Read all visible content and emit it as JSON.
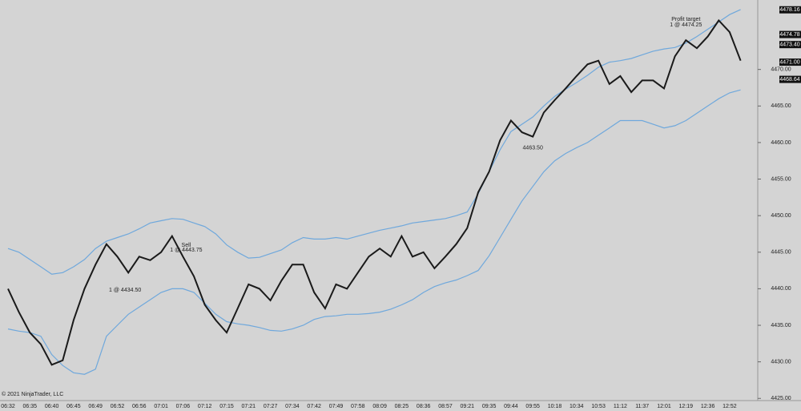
{
  "chart_data": {
    "type": "line",
    "copyright": "© 2021 NinjaTrader, LLC",
    "categories": [
      "06:32",
      null,
      "06:35",
      null,
      "06:40",
      null,
      "06:45",
      null,
      "06:49",
      null,
      "06:52",
      null,
      "06:56",
      null,
      "07:01",
      null,
      "07:06",
      null,
      "07:12",
      null,
      "07:15",
      null,
      "07:21",
      null,
      "07:27",
      null,
      "07:34",
      null,
      "07:42",
      null,
      "07:49",
      null,
      "07:58",
      null,
      "08:09",
      null,
      "08:25",
      null,
      "08:36",
      null,
      "08:57",
      null,
      "09:21",
      null,
      "09:35",
      null,
      "09:44",
      null,
      "09:55",
      null,
      "10:18",
      null,
      "10:34",
      null,
      "10:53",
      null,
      "11:12",
      null,
      "11:37",
      null,
      "12:01",
      null,
      "12:19",
      null,
      "12:36",
      null,
      "12:52",
      null
    ],
    "series": [
      {
        "color": "#6fa8dc",
        "values": [
          4445.5,
          4445,
          4444,
          4443,
          4442,
          4442.2,
          4443,
          4444,
          4445.5,
          4446.5,
          4447,
          4447.5,
          4448.2,
          4449,
          4449.3,
          4449.6,
          4449.5,
          4449,
          4448.5,
          4447.5,
          4446,
          4445,
          4444.2,
          4444.3,
          4444.8,
          4445.3,
          4446.3,
          4447,
          4446.8,
          4446.8,
          4447,
          4446.8,
          4447.2,
          4447.6,
          4448,
          4448.3,
          4448.6,
          4449,
          4449.2,
          4449.4,
          4449.6,
          4450,
          4450.5,
          4453,
          4456,
          4459,
          4461.5,
          4462.5,
          4463.5,
          4465,
          4466.3,
          4467.3,
          4468.2,
          4469.2,
          4470.3,
          4471,
          4471.2,
          4471.5,
          4472,
          4472.5,
          4472.8,
          4473,
          4473.6,
          4474.5,
          4475.5,
          4476.5,
          4477.5,
          4478.2
        ]
      },
      {
        "color": "#6fa8dc",
        "values": [
          4434.5,
          4434.2,
          4434,
          4433.5,
          4431,
          4429.5,
          4428.5,
          4428.3,
          4429,
          4433.5,
          4435,
          4436.5,
          4437.5,
          4438.5,
          4439.5,
          4440,
          4440,
          4439.5,
          4438,
          4436.5,
          4435.5,
          4435.2,
          4435,
          4434.7,
          4434.3,
          4434.2,
          4434.5,
          4435,
          4435.8,
          4436.2,
          4436.3,
          4436.5,
          4436.5,
          4436.6,
          4436.8,
          4437.2,
          4437.8,
          4438.5,
          4439.5,
          4440.3,
          4440.8,
          4441.2,
          4441.8,
          4442.5,
          4444.5,
          4447,
          4449.5,
          4452,
          4454,
          4456,
          4457.5,
          4458.5,
          4459.3,
          4460,
          4461,
          4462,
          4463,
          4463,
          4463,
          4462.5,
          4462,
          4462.3,
          4463,
          4464,
          4465,
          4466,
          4466.8,
          4467.2
        ]
      },
      {
        "color": "#1a1a1a",
        "values": [
          4440,
          4436.8,
          4434,
          4432.4,
          4429.6,
          4430.2,
          4435.7,
          4440,
          4443.3,
          4446.1,
          4444.4,
          4442.2,
          4444.4,
          4443.9,
          4445,
          4447.2,
          4444.4,
          4441.7,
          4437.8,
          4435.7,
          4434,
          4437.3,
          4440.6,
          4440,
          4438.4,
          4441.1,
          4443.3,
          4443.3,
          4439.5,
          4437.3,
          4440.6,
          4440,
          4442.2,
          4444.4,
          4445.5,
          4444.4,
          4447.2,
          4444.4,
          4445,
          4442.8,
          4444.4,
          4446.1,
          4448.3,
          4453.2,
          4456,
          4460.3,
          4463,
          4461.4,
          4460.8,
          4464.1,
          4465.8,
          4467.4,
          4469.1,
          4470.7,
          4471.2,
          4468,
          4469.1,
          4466.9,
          4468.5,
          4468.5,
          4467.4,
          4471.8,
          4474,
          4472.9,
          4474.5,
          4476.7,
          4475.1,
          4471.2
        ]
      }
    ],
    "ylim": [
      4424.7,
      4479.5
    ],
    "yticks": [
      {
        "value": 4425,
        "label": "4425.00"
      },
      {
        "value": 4430,
        "label": "4430.00"
      },
      {
        "value": 4435,
        "label": "4435.00"
      },
      {
        "value": 4440,
        "label": "4440.00"
      },
      {
        "value": 4445,
        "label": "4445.00"
      },
      {
        "value": 4450,
        "label": "4450.00"
      },
      {
        "value": 4455,
        "label": "4455.00"
      },
      {
        "value": 4460,
        "label": "4460.00"
      },
      {
        "value": 4465,
        "label": "4465.00"
      },
      {
        "value": 4470,
        "label": "4470.00"
      }
    ],
    "price_markers": [
      4478.16,
      4474.78,
      {
        "value": 4473.4,
        "label": "4473.40"
      },
      {
        "value": 4471,
        "label": "4471.00"
      },
      4468.64
    ],
    "annotations": [
      {
        "text": "Profit target",
        "index": 62
      },
      {
        "text": "1 @ 4474.25",
        "index": 62
      },
      {
        "text": "Sell",
        "index": 16
      },
      {
        "text": "1 @ 4443.75",
        "index": 16
      },
      {
        "text": "1 @ 4434.50",
        "index": 11
      },
      {
        "text": "4463.50",
        "index": 48
      }
    ]
  }
}
